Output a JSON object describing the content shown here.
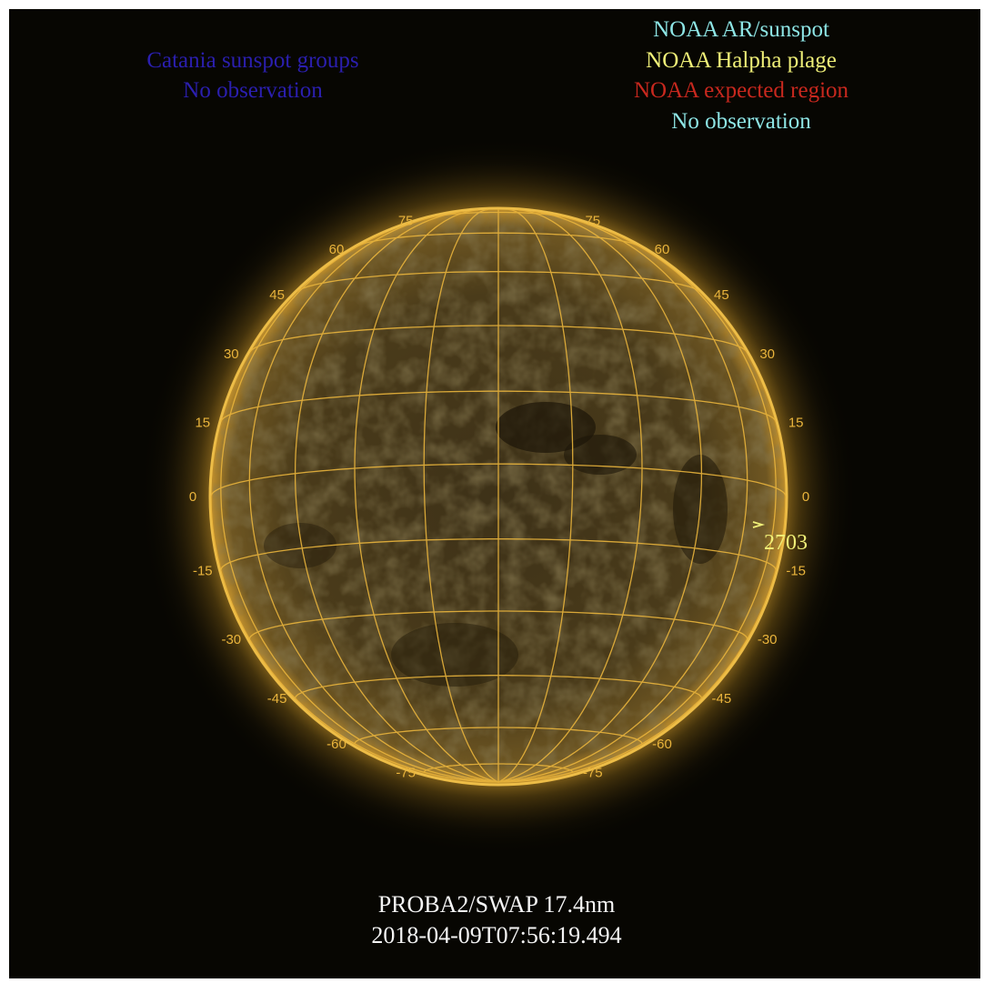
{
  "legend_left": {
    "title": "Catania sunspot groups",
    "status": "No observation",
    "color": "#2b1fb0"
  },
  "legend_right": {
    "items": [
      {
        "label": "NOAA AR/sunspot",
        "color": "#8ee6e6"
      },
      {
        "label": "NOAA Halpha plage",
        "color": "#f0f078"
      },
      {
        "label": "NOAA expected region",
        "color": "#c8281e"
      },
      {
        "label": "No observation",
        "color": "#8ee6e6"
      }
    ]
  },
  "latitude_labels": {
    "left": [
      "75",
      "60",
      "45",
      "30",
      "15",
      "0",
      "-15",
      "-30",
      "-45",
      "-60",
      "-75"
    ],
    "right": [
      "75",
      "60",
      "45",
      "30",
      "15",
      "0",
      "-15",
      "-30",
      "-45",
      "-60",
      "-75"
    ]
  },
  "active_region": {
    "number": "2703",
    "color": "#f0f078"
  },
  "caption": {
    "instrument": "PROBA2/SWAP 17.4nm",
    "timestamp": "2018-04-09T07:56:19.494"
  },
  "colors": {
    "background": "#070602",
    "grid": "#e9b43c",
    "disk": "#4a3b18",
    "limb": "#f2c24a"
  }
}
